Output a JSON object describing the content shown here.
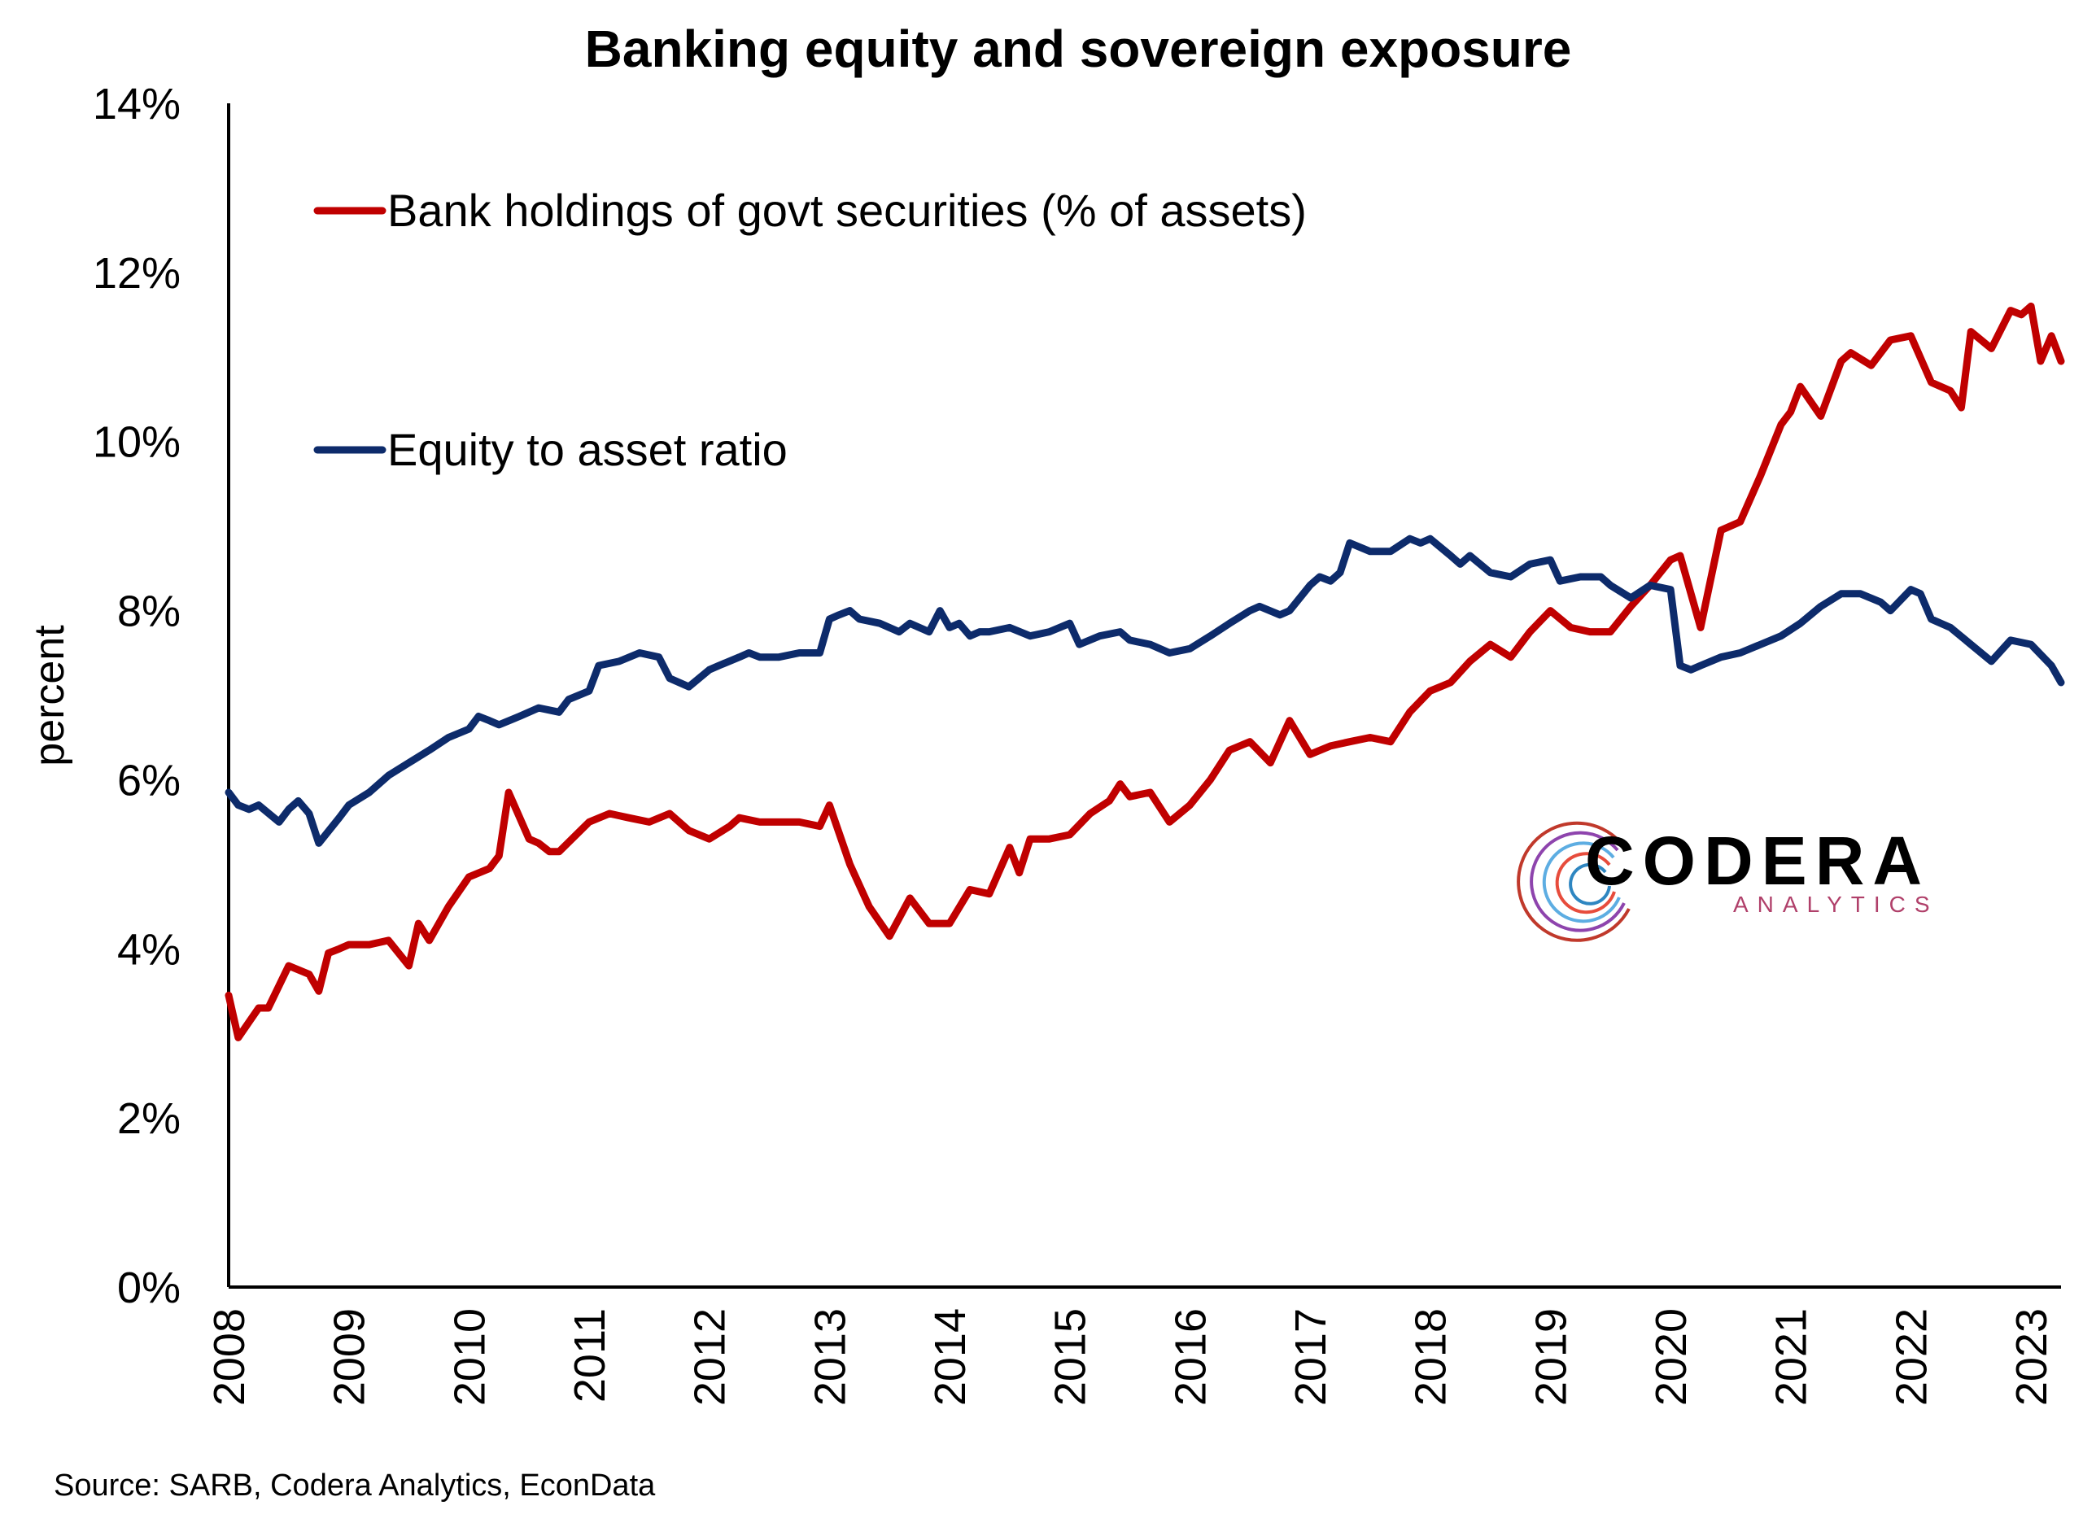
{
  "chart_data": {
    "type": "line",
    "title": "Banking equity and sovereign exposure",
    "ylabel": "percent",
    "xlabel": "",
    "ylim": [
      0,
      14
    ],
    "y_ticks": [
      "0%",
      "2%",
      "4%",
      "6%",
      "8%",
      "10%",
      "12%",
      "14%"
    ],
    "x_ticks": [
      "2008",
      "2009",
      "2010",
      "2011",
      "2012",
      "2013",
      "2014",
      "2015",
      "2016",
      "2017",
      "2018",
      "2019",
      "2020",
      "2021",
      "2022",
      "2023"
    ],
    "xlim": [
      2008.0,
      2023.25
    ],
    "grid": false,
    "legend_placement": "upper-left",
    "series": [
      {
        "name": "Bank holdings of govt securities (% of assets)",
        "color": "#c00000",
        "x": [
          2008.0,
          2008.08,
          2008.25,
          2008.33,
          2008.5,
          2008.67,
          2008.75,
          2008.83,
          2008.92,
          2009.0,
          2009.17,
          2009.33,
          2009.5,
          2009.58,
          2009.67,
          2009.83,
          2010.0,
          2010.17,
          2010.25,
          2010.33,
          2010.5,
          2010.58,
          2010.67,
          2010.75,
          2011.0,
          2011.17,
          2011.33,
          2011.5,
          2011.67,
          2011.83,
          2012.0,
          2012.17,
          2012.25,
          2012.42,
          2012.58,
          2012.75,
          2012.92,
          2013.0,
          2013.17,
          2013.33,
          2013.5,
          2013.67,
          2013.83,
          2014.0,
          2014.17,
          2014.33,
          2014.5,
          2014.58,
          2014.67,
          2014.83,
          2015.0,
          2015.17,
          2015.33,
          2015.42,
          2015.5,
          2015.67,
          2015.83,
          2016.0,
          2016.17,
          2016.33,
          2016.5,
          2016.67,
          2016.83,
          2017.0,
          2017.17,
          2017.33,
          2017.5,
          2017.67,
          2017.83,
          2018.0,
          2018.17,
          2018.33,
          2018.5,
          2018.67,
          2018.83,
          2019.0,
          2019.17,
          2019.33,
          2019.5,
          2019.67,
          2019.83,
          2020.0,
          2020.08,
          2020.25,
          2020.42,
          2020.58,
          2020.75,
          2020.92,
          2021.0,
          2021.08,
          2021.25,
          2021.42,
          2021.5,
          2021.67,
          2021.83,
          2022.0,
          2022.17,
          2022.33,
          2022.42,
          2022.5,
          2022.67,
          2022.83,
          2022.92,
          2023.0,
          2023.08,
          2023.17,
          2023.25
        ],
        "values": [
          3.45,
          2.95,
          3.3,
          3.3,
          3.8,
          3.7,
          3.5,
          3.95,
          4.0,
          4.05,
          4.05,
          4.1,
          3.8,
          4.3,
          4.1,
          4.5,
          4.85,
          4.95,
          5.1,
          5.85,
          5.3,
          5.25,
          5.15,
          5.15,
          5.5,
          5.6,
          5.55,
          5.5,
          5.6,
          5.4,
          5.3,
          5.45,
          5.55,
          5.5,
          5.5,
          5.5,
          5.45,
          5.7,
          5.0,
          4.5,
          4.15,
          4.6,
          4.3,
          4.3,
          4.7,
          4.65,
          5.2,
          4.9,
          5.3,
          5.3,
          5.35,
          5.6,
          5.75,
          5.95,
          5.8,
          5.85,
          5.5,
          5.7,
          6.0,
          6.35,
          6.45,
          6.2,
          6.7,
          6.3,
          6.4,
          6.45,
          6.5,
          6.45,
          6.8,
          7.05,
          7.15,
          7.4,
          7.6,
          7.45,
          7.75,
          8.0,
          7.8,
          7.75,
          7.75,
          8.05,
          8.3,
          8.6,
          8.65,
          7.8,
          8.95,
          9.05,
          9.6,
          10.2,
          10.35,
          10.65,
          10.3,
          10.95,
          11.05,
          10.9,
          11.2,
          11.25,
          10.7,
          10.6,
          10.4,
          11.3,
          11.1,
          11.55,
          11.5,
          11.6,
          10.95,
          11.25,
          10.95
        ]
      },
      {
        "name": "Equity to asset ratio",
        "color": "#0d2b6b",
        "x": [
          2008.0,
          2008.08,
          2008.17,
          2008.25,
          2008.42,
          2008.5,
          2008.58,
          2008.67,
          2008.75,
          2008.92,
          2009.0,
          2009.17,
          2009.33,
          2009.5,
          2009.67,
          2009.83,
          2010.0,
          2010.08,
          2010.17,
          2010.25,
          2010.42,
          2010.58,
          2010.75,
          2010.83,
          2011.0,
          2011.08,
          2011.25,
          2011.42,
          2011.58,
          2011.67,
          2011.83,
          2012.0,
          2012.08,
          2012.25,
          2012.33,
          2012.42,
          2012.58,
          2012.75,
          2012.92,
          2013.0,
          2013.08,
          2013.17,
          2013.25,
          2013.42,
          2013.58,
          2013.67,
          2013.83,
          2013.92,
          2014.0,
          2014.08,
          2014.17,
          2014.25,
          2014.33,
          2014.5,
          2014.67,
          2014.83,
          2015.0,
          2015.08,
          2015.25,
          2015.42,
          2015.5,
          2015.67,
          2015.83,
          2016.0,
          2016.17,
          2016.33,
          2016.5,
          2016.58,
          2016.75,
          2016.83,
          2017.0,
          2017.08,
          2017.17,
          2017.25,
          2017.33,
          2017.5,
          2017.67,
          2017.83,
          2017.92,
          2018.0,
          2018.17,
          2018.25,
          2018.33,
          2018.5,
          2018.67,
          2018.83,
          2019.0,
          2019.08,
          2019.25,
          2019.42,
          2019.5,
          2019.67,
          2019.83,
          2020.0,
          2020.08,
          2020.17,
          2020.25,
          2020.42,
          2020.58,
          2020.75,
          2020.92,
          2021.08,
          2021.25,
          2021.42,
          2021.58,
          2021.75,
          2021.83,
          2022.0,
          2022.08,
          2022.17,
          2022.33,
          2022.5,
          2022.67,
          2022.83,
          2023.0,
          2023.17,
          2023.25
        ],
        "values": [
          5.85,
          5.7,
          5.65,
          5.7,
          5.5,
          5.65,
          5.75,
          5.6,
          5.25,
          5.55,
          5.7,
          5.85,
          6.05,
          6.2,
          6.35,
          6.5,
          6.6,
          6.75,
          6.7,
          6.65,
          6.75,
          6.85,
          6.8,
          6.95,
          7.05,
          7.35,
          7.4,
          7.5,
          7.45,
          7.2,
          7.1,
          7.3,
          7.35,
          7.45,
          7.5,
          7.45,
          7.45,
          7.5,
          7.5,
          7.9,
          7.95,
          8.0,
          7.9,
          7.85,
          7.75,
          7.85,
          7.75,
          8.0,
          7.8,
          7.85,
          7.7,
          7.75,
          7.75,
          7.8,
          7.7,
          7.75,
          7.85,
          7.6,
          7.7,
          7.75,
          7.65,
          7.6,
          7.5,
          7.55,
          7.7,
          7.85,
          8.0,
          8.05,
          7.95,
          8.0,
          8.3,
          8.4,
          8.35,
          8.45,
          8.8,
          8.7,
          8.7,
          8.85,
          8.8,
          8.85,
          8.65,
          8.55,
          8.65,
          8.45,
          8.4,
          8.55,
          8.6,
          8.35,
          8.4,
          8.4,
          8.3,
          8.15,
          8.3,
          8.25,
          7.35,
          7.3,
          7.35,
          7.45,
          7.5,
          7.6,
          7.7,
          7.85,
          8.05,
          8.2,
          8.2,
          8.1,
          8.0,
          8.25,
          8.2,
          7.9,
          7.8,
          7.6,
          7.4,
          7.65,
          7.6,
          7.35,
          7.15
        ]
      }
    ]
  },
  "source": "Source: SARB, Codera Analytics,  EconData",
  "logo": {
    "name": "CODERA",
    "sub": "ANALYTICS"
  }
}
